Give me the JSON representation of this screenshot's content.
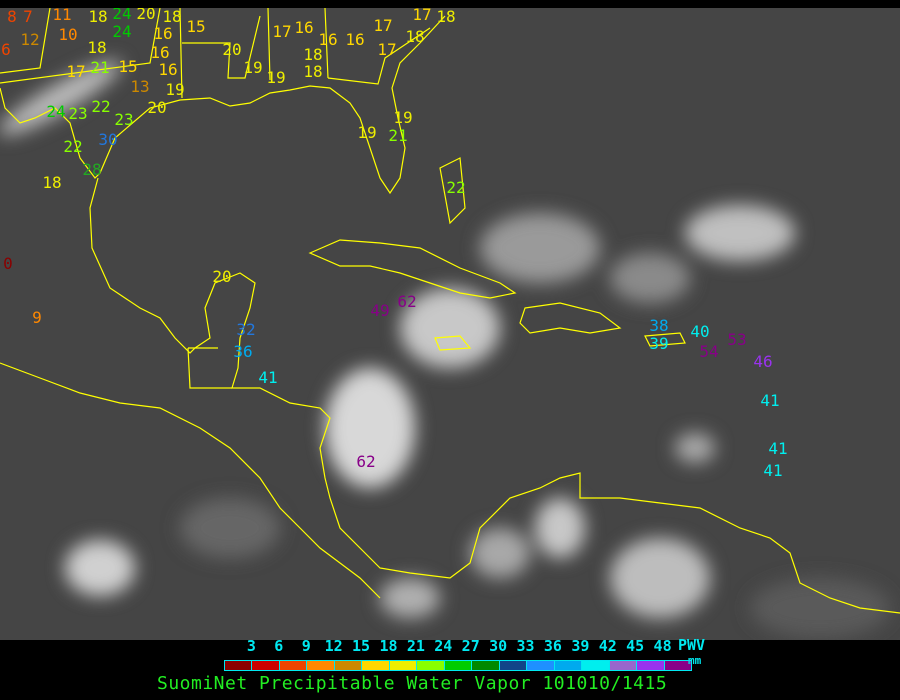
{
  "map": {
    "coastline_color": "#ffff00",
    "stations": [
      {
        "value": "8"
      },
      {
        "value": "7"
      },
      {
        "value": "6"
      },
      {
        "value": "12"
      },
      {
        "value": "11"
      },
      {
        "value": "10"
      },
      {
        "value": "18"
      },
      {
        "value": "24"
      },
      {
        "value": "24"
      },
      {
        "value": "20"
      },
      {
        "value": "18"
      },
      {
        "value": "16"
      },
      {
        "value": "15"
      },
      {
        "value": "18"
      },
      {
        "value": "16"
      },
      {
        "value": "17"
      },
      {
        "value": "21"
      },
      {
        "value": "15"
      },
      {
        "value": "13"
      },
      {
        "value": "16"
      },
      {
        "value": "19"
      },
      {
        "value": "20"
      },
      {
        "value": "20"
      },
      {
        "value": "19"
      },
      {
        "value": "19"
      },
      {
        "value": "17"
      },
      {
        "value": "16"
      },
      {
        "value": "16"
      },
      {
        "value": "18"
      },
      {
        "value": "18"
      },
      {
        "value": "16"
      },
      {
        "value": "17"
      },
      {
        "value": "17"
      },
      {
        "value": "18"
      },
      {
        "value": "17"
      },
      {
        "value": "18"
      },
      {
        "value": "24"
      },
      {
        "value": "23"
      },
      {
        "value": "22"
      },
      {
        "value": "23"
      },
      {
        "value": "30"
      },
      {
        "value": "22"
      },
      {
        "value": "28"
      },
      {
        "value": "18"
      },
      {
        "value": "19"
      },
      {
        "value": "19"
      },
      {
        "value": "21"
      },
      {
        "value": "22"
      },
      {
        "value": "20"
      },
      {
        "value": "0"
      },
      {
        "value": "9"
      },
      {
        "value": "32"
      },
      {
        "value": "36"
      },
      {
        "value": "41"
      },
      {
        "value": "49"
      },
      {
        "value": "62"
      },
      {
        "value": "62"
      },
      {
        "value": "38"
      },
      {
        "value": "39"
      },
      {
        "value": "40"
      },
      {
        "value": "54"
      },
      {
        "value": "53"
      },
      {
        "value": "46"
      },
      {
        "value": "41"
      },
      {
        "value": "41"
      },
      {
        "value": "41"
      }
    ]
  },
  "legend": {
    "ticks": [
      "3",
      "6",
      "9",
      "12",
      "15",
      "18",
      "21",
      "24",
      "27",
      "30",
      "33",
      "36",
      "39",
      "42",
      "45",
      "48"
    ],
    "colors": [
      "#8b0000",
      "#cc0000",
      "#ee4400",
      "#ff8800",
      "#cc8800",
      "#ffd700",
      "#eeee00",
      "#88ff00",
      "#00cc00",
      "#008800",
      "#114488",
      "#1e90ff",
      "#00aaee",
      "#00eeee",
      "#9966cc",
      "#9933ee",
      "#880088"
    ],
    "unit_label": "PWV",
    "unit": "mm"
  },
  "caption": "SuomiNet Precipitable Water Vapor 101010/1415"
}
